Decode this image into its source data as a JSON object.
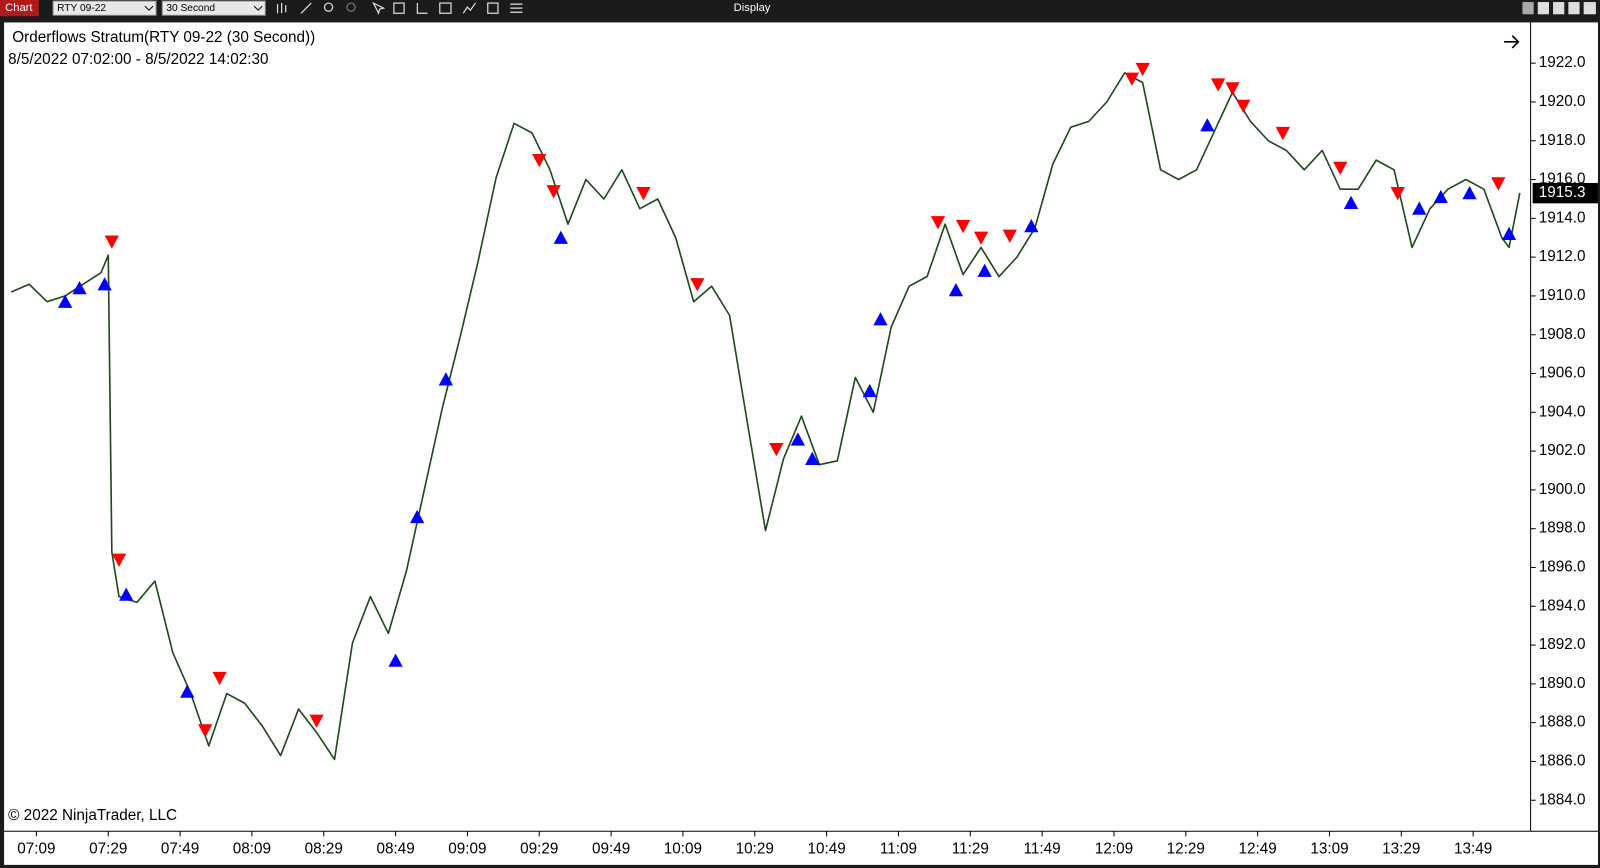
{
  "ui": {
    "tab": "Chart",
    "instrument": "RTY 09-22",
    "interval": "30 Second",
    "menu": "Display",
    "title": "Orderflows Stratum(RTY 09-22 (30 Second))",
    "range": "8/5/2022 07:02:00 - 8/5/2022 14:02:30",
    "copyright": "© 2022 NinjaTrader, LLC"
  },
  "chart_data": {
    "type": "line",
    "xlim": [
      "07:00",
      "14:05"
    ],
    "xticks": [
      "07:09",
      "07:29",
      "07:49",
      "08:09",
      "08:29",
      "08:49",
      "09:09",
      "09:29",
      "09:49",
      "10:09",
      "10:29",
      "10:49",
      "11:09",
      "11:29",
      "11:49",
      "12:09",
      "12:29",
      "12:49",
      "13:09",
      "13:29",
      "13:49"
    ],
    "ylim": [
      1882.4,
      1924.1
    ],
    "yticks": [
      {
        "value": 1884,
        "label": "1884.0"
      },
      {
        "value": 1886,
        "label": "1886.0"
      },
      {
        "value": 1888,
        "label": "1888.0"
      },
      {
        "value": 1890,
        "label": "1890.0"
      },
      {
        "value": 1892,
        "label": "1892.0"
      },
      {
        "value": 1894,
        "label": "1894.0"
      },
      {
        "value": 1896,
        "label": "1896.0"
      },
      {
        "value": 1898,
        "label": "1898.0"
      },
      {
        "value": 1900,
        "label": "1900.0"
      },
      {
        "value": 1902,
        "label": "1902.0"
      },
      {
        "value": 1904,
        "label": "1904.0"
      },
      {
        "value": 1906,
        "label": "1906.0"
      },
      {
        "value": 1908,
        "label": "1908.0"
      },
      {
        "value": 1910,
        "label": "1910.0"
      },
      {
        "value": 1912,
        "label": "1912.0"
      },
      {
        "value": 1914,
        "label": "1914.0"
      },
      {
        "value": 1916,
        "label": "1916.0"
      },
      {
        "value": 1918,
        "label": "1918.0"
      },
      {
        "value": 1920,
        "label": "1920.0"
      },
      {
        "value": 1922,
        "label": "1922.0"
      }
    ],
    "grid": false,
    "last_price": 1915.3,
    "series": [
      {
        "type": "line",
        "color": "#1f4a1c",
        "x": [
          "07:02",
          "07:07",
          "07:12",
          "07:17",
          "07:22",
          "07:27",
          "07:29",
          "07:30",
          "07:32",
          "07:37",
          "07:42",
          "07:47",
          "07:52",
          "07:57",
          "08:02",
          "08:07",
          "08:12",
          "08:17",
          "08:22",
          "08:27",
          "08:32",
          "08:37",
          "08:42",
          "08:47",
          "08:52",
          "08:57",
          "09:02",
          "09:07",
          "09:12",
          "09:17",
          "09:22",
          "09:27",
          "09:32",
          "09:37",
          "09:42",
          "09:47",
          "09:52",
          "09:57",
          "10:02",
          "10:07",
          "10:12",
          "10:17",
          "10:22",
          "10:27",
          "10:32",
          "10:37",
          "10:42",
          "10:47",
          "10:52",
          "10:57",
          "11:02",
          "11:07",
          "11:12",
          "11:17",
          "11:22",
          "11:27",
          "11:32",
          "11:37",
          "11:42",
          "11:47",
          "11:52",
          "11:57",
          "12:02",
          "12:07",
          "12:12",
          "12:17",
          "12:22",
          "12:27",
          "12:32",
          "12:37",
          "12:42",
          "12:47",
          "12:52",
          "12:57",
          "13:02",
          "13:07",
          "13:12",
          "13:17",
          "13:22",
          "13:27",
          "13:32",
          "13:37",
          "13:42",
          "13:47",
          "13:52",
          "13:57",
          "13:59",
          "14:02"
        ],
        "values": [
          1910.2,
          1910.6,
          1909.7,
          1910.0,
          1910.6,
          1911.2,
          1912.1,
          1896.8,
          1894.5,
          1894.2,
          1895.3,
          1891.6,
          1889.5,
          1886.8,
          1889.5,
          1889.0,
          1887.8,
          1886.3,
          1888.7,
          1887.5,
          1886.1,
          1892.1,
          1894.5,
          1892.6,
          1895.8,
          1900.0,
          1904.2,
          1907.9,
          1911.8,
          1916.1,
          1918.9,
          1918.4,
          1916.5,
          1913.7,
          1916.0,
          1915.0,
          1916.5,
          1914.5,
          1915.0,
          1913.0,
          1909.7,
          1910.5,
          1909.0,
          1903.4,
          1897.9,
          1901.6,
          1903.8,
          1901.3,
          1901.5,
          1905.8,
          1904.0,
          1908.4,
          1910.5,
          1911.0,
          1913.7,
          1911.1,
          1912.5,
          1911.0,
          1912.0,
          1913.5,
          1916.8,
          1918.7,
          1919.0,
          1920.0,
          1921.5,
          1921.0,
          1916.5,
          1916.0,
          1916.5,
          1918.5,
          1920.5,
          1919.0,
          1918.0,
          1917.5,
          1916.5,
          1917.5,
          1915.5,
          1915.5,
          1917.0,
          1916.5,
          1912.5,
          1914.5,
          1915.5,
          1916.0,
          1915.5,
          1913.0,
          1912.5,
          1915.3
        ]
      },
      {
        "type": "scatter",
        "marker": "triangle-up",
        "color": "#0000ff",
        "x": [
          "07:17",
          "07:21",
          "07:28",
          "07:34",
          "07:51",
          "08:49",
          "08:55",
          "09:03",
          "09:35",
          "10:41",
          "10:45",
          "11:01",
          "11:04",
          "11:25",
          "11:33",
          "11:46",
          "12:35",
          "13:15",
          "13:34",
          "13:40",
          "13:48",
          "13:59"
        ],
        "values": [
          1909.7,
          1910.4,
          1910.6,
          1894.6,
          1889.6,
          1891.2,
          1898.6,
          1905.7,
          1913.0,
          1902.6,
          1901.6,
          1905.1,
          1908.8,
          1910.3,
          1911.3,
          1913.6,
          1918.8,
          1914.8,
          1914.5,
          1915.1,
          1915.3,
          1913.2
        ]
      },
      {
        "type": "scatter",
        "marker": "triangle-down",
        "color": "#ff0000",
        "x": [
          "07:30",
          "07:32",
          "07:56",
          "08:00",
          "08:27",
          "09:29",
          "09:33",
          "09:58",
          "10:13",
          "10:35",
          "11:20",
          "11:27",
          "11:32",
          "11:40",
          "12:14",
          "12:17",
          "12:38",
          "12:42",
          "12:45",
          "12:56",
          "13:12",
          "13:28",
          "13:56"
        ],
        "values": [
          1912.8,
          1896.4,
          1887.6,
          1890.3,
          1888.1,
          1917.0,
          1915.4,
          1915.3,
          1910.6,
          1902.1,
          1913.8,
          1913.6,
          1913.0,
          1913.1,
          1921.2,
          1921.7,
          1920.9,
          1920.7,
          1919.8,
          1918.4,
          1916.6,
          1915.3,
          1915.8
        ]
      }
    ]
  }
}
